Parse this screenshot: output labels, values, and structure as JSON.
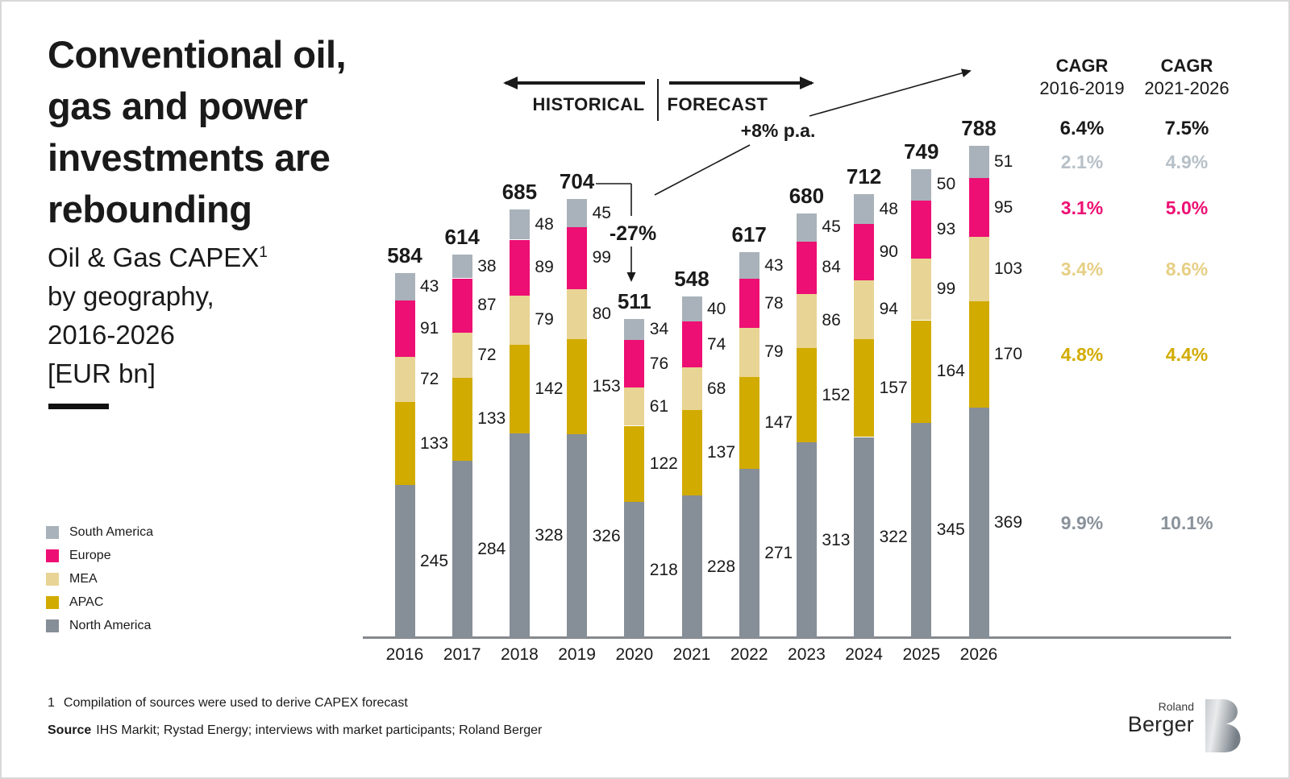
{
  "page": {
    "background": "#ffffff",
    "border_color": "#d8d8d8"
  },
  "header": {
    "title_lines": [
      "Conventional oil,",
      "gas and power",
      "investments are",
      "rebounding"
    ],
    "subtitle_line1": "Oil & Gas CAPEX",
    "subtitle_sup": "1",
    "subtitle_lines_rest": [
      "by geography,",
      "2016-2026",
      "[EUR bn]"
    ]
  },
  "legend": {
    "items": [
      {
        "label": "South America",
        "color": "#a9b2ba"
      },
      {
        "label": "Europe",
        "color": "#ed0f73"
      },
      {
        "label": "MEA",
        "color": "#e8d494"
      },
      {
        "label": "APAC",
        "color": "#d2ab00"
      },
      {
        "label": "North America",
        "color": "#868e97"
      }
    ]
  },
  "annotations": {
    "historical_label": "HISTORICAL",
    "forecast_label": "FORECAST",
    "growth_label": "+8% p.a.",
    "drop_label": "-27%"
  },
  "chart_data": {
    "type": "bar",
    "stacked": true,
    "title": "Oil & Gas CAPEX by geography, 2016-2026 [EUR bn]",
    "unit": "EUR bn",
    "x": [
      "2016",
      "2017",
      "2018",
      "2019",
      "2020",
      "2021",
      "2022",
      "2023",
      "2024",
      "2025",
      "2026"
    ],
    "series": [
      {
        "name": "North America",
        "color": "#868e97",
        "values": [
          245,
          284,
          328,
          326,
          218,
          228,
          271,
          313,
          322,
          345,
          369
        ]
      },
      {
        "name": "APAC",
        "color": "#d2ab00",
        "values": [
          133,
          133,
          142,
          153,
          122,
          137,
          147,
          152,
          157,
          164,
          170
        ]
      },
      {
        "name": "MEA",
        "color": "#e8d494",
        "values": [
          72,
          72,
          79,
          80,
          61,
          68,
          79,
          86,
          94,
          99,
          103
        ]
      },
      {
        "name": "Europe",
        "color": "#ed0f73",
        "values": [
          91,
          87,
          89,
          99,
          76,
          74,
          78,
          84,
          90,
          93,
          95
        ]
      },
      {
        "name": "South America",
        "color": "#a9b2ba",
        "values": [
          43,
          38,
          48,
          45,
          34,
          40,
          43,
          45,
          48,
          50,
          51
        ]
      }
    ],
    "series_order": "bottom_to_top",
    "totals": [
      584,
      614,
      685,
      704,
      511,
      548,
      617,
      680,
      712,
      749,
      788
    ],
    "ylim": [
      0,
      800
    ],
    "grid": false,
    "axis_color": "#85898d",
    "legend_position": "left"
  },
  "cagr": {
    "total_color": "#1a1a1a",
    "row_colors_top_to_bottom": [
      "#b7c0c7",
      "#ed0f73",
      "#e6cf85",
      "#d2ab00",
      "#8a929b"
    ],
    "col1": {
      "title": "CAGR",
      "period": "2016-2019",
      "total": "6.4%",
      "values": [
        "2.1%",
        "3.1%",
        "3.4%",
        "4.8%",
        "9.9%"
      ]
    },
    "col2": {
      "title": "CAGR",
      "period": "2021-2026",
      "total": "7.5%",
      "values": [
        "4.9%",
        "5.0%",
        "8.6%",
        "4.4%",
        "10.1%"
      ]
    }
  },
  "footer": {
    "footnote_marker": "1",
    "footnote_text": "Compilation of sources were used to derive CAPEX forecast",
    "source_label": "Source",
    "source_text": "IHS Markit; Rystad Energy; interviews with market participants; Roland Berger"
  },
  "logo": {
    "line1": "Roland",
    "line2": "Berger"
  }
}
